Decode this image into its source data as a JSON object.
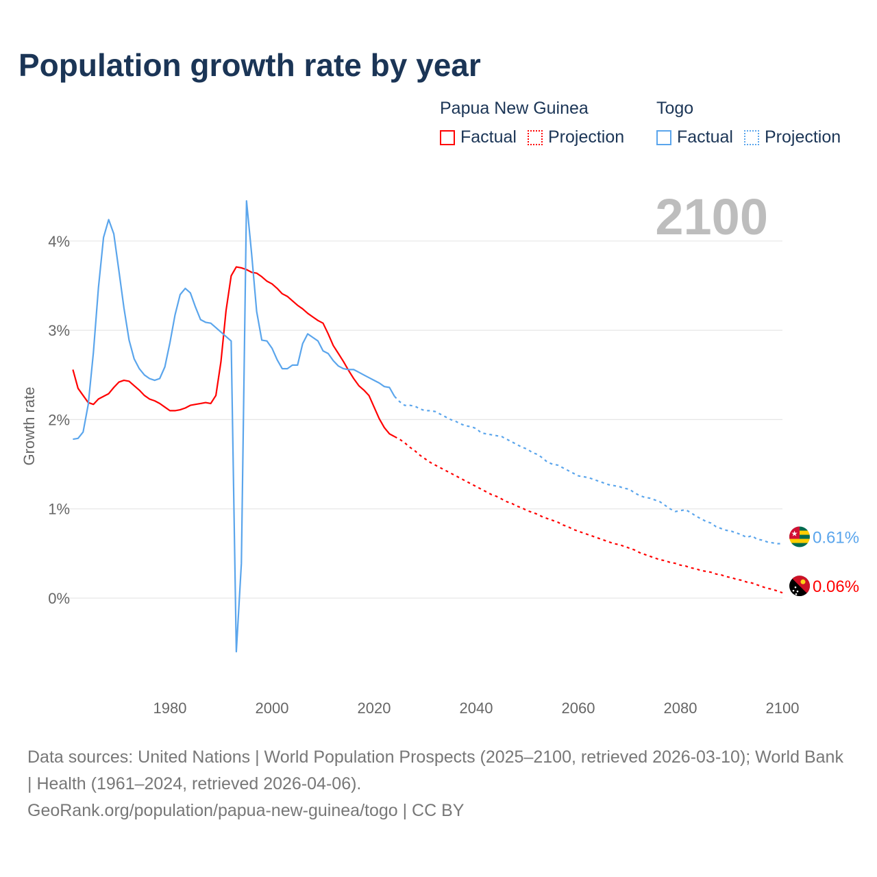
{
  "title": "Population growth rate by year",
  "legend": {
    "groups": [
      {
        "name": "Papua New Guinea",
        "factual": "Factual",
        "projection": "Projection",
        "color": "#ff0000"
      },
      {
        "name": "Togo",
        "factual": "Factual",
        "projection": "Projection",
        "color": "#5aa5ec"
      }
    ]
  },
  "year_label": "2100",
  "footer": {
    "sources": "Data sources: United Nations | World Population Prospects (2025–2100, retrieved 2026-03-10); World Bank | Health (1961–2024, retrieved 2026-04-06).",
    "credit": "GeoRank.org/population/papua-new-guinea/togo | CC BY"
  },
  "chart_data": {
    "type": "line",
    "title": "Population growth rate by year",
    "xlabel": "",
    "ylabel": "Growth rate",
    "xlim": [
      1961,
      2100
    ],
    "ylim": [
      -0.9,
      4.6
    ],
    "x_ticks": [
      "1980",
      "2000",
      "2020",
      "2040",
      "2060",
      "2080",
      "2100"
    ],
    "x_tick_values": [
      1980,
      2000,
      2020,
      2040,
      2060,
      2080,
      2100
    ],
    "y_ticks": [
      "0%",
      "1%",
      "2%",
      "3%",
      "4%"
    ],
    "y_tick_values": [
      0,
      1,
      2,
      3,
      4
    ],
    "grid": true,
    "series": [
      {
        "name": "Papua New Guinea",
        "color": "#ff0000",
        "end_label": "0.06%",
        "factual_start": 1961,
        "factual": [
          2.56,
          2.35,
          2.27,
          2.19,
          2.17,
          2.23,
          2.26,
          2.29,
          2.36,
          2.42,
          2.44,
          2.43,
          2.38,
          2.33,
          2.27,
          2.23,
          2.21,
          2.18,
          2.14,
          2.1,
          2.1,
          2.11,
          2.13,
          2.16,
          2.17,
          2.18,
          2.19,
          2.18,
          2.27,
          2.65,
          3.22,
          3.61,
          3.71,
          3.7,
          3.68,
          3.65,
          3.64,
          3.6,
          3.55,
          3.52,
          3.47,
          3.41,
          3.38,
          3.33,
          3.28,
          3.24,
          3.19,
          3.15,
          3.11,
          3.08,
          2.96,
          2.83,
          2.74,
          2.65,
          2.55,
          2.46,
          2.38,
          2.33,
          2.27,
          2.14,
          2.01,
          1.91,
          1.84,
          1.81
        ],
        "projection_start": 2024,
        "projection": [
          1.81,
          1.78,
          1.74,
          1.69,
          1.65,
          1.6,
          1.56,
          1.52,
          1.49,
          1.46,
          1.43,
          1.4,
          1.37,
          1.34,
          1.31,
          1.28,
          1.25,
          1.22,
          1.19,
          1.16,
          1.14,
          1.11,
          1.08,
          1.06,
          1.03,
          1.01,
          0.98,
          0.96,
          0.94,
          0.91,
          0.89,
          0.87,
          0.85,
          0.82,
          0.8,
          0.77,
          0.75,
          0.73,
          0.71,
          0.69,
          0.67,
          0.65,
          0.63,
          0.61,
          0.6,
          0.58,
          0.56,
          0.54,
          0.51,
          0.49,
          0.47,
          0.45,
          0.43,
          0.42,
          0.4,
          0.39,
          0.37,
          0.36,
          0.34,
          0.33,
          0.31,
          0.3,
          0.29,
          0.27,
          0.26,
          0.24,
          0.23,
          0.21,
          0.2,
          0.18,
          0.17,
          0.15,
          0.13,
          0.11,
          0.1,
          0.08,
          0.06
        ]
      },
      {
        "name": "Togo",
        "color": "#5aa5ec",
        "end_label": "0.61%",
        "factual_start": 1961,
        "factual": [
          1.78,
          1.79,
          1.86,
          2.17,
          2.75,
          3.48,
          4.04,
          4.24,
          4.08,
          3.67,
          3.25,
          2.89,
          2.68,
          2.57,
          2.5,
          2.46,
          2.44,
          2.46,
          2.59,
          2.86,
          3.17,
          3.4,
          3.47,
          3.42,
          3.26,
          3.12,
          3.09,
          3.08,
          3.03,
          2.98,
          2.93,
          2.88,
          -0.6,
          0.39,
          4.45,
          3.86,
          3.21,
          2.89,
          2.88,
          2.8,
          2.67,
          2.57,
          2.57,
          2.61,
          2.61,
          2.85,
          2.96,
          2.92,
          2.88,
          2.77,
          2.74,
          2.66,
          2.6,
          2.57,
          2.56,
          2.56,
          2.53,
          2.5,
          2.47,
          2.44,
          2.41,
          2.37,
          2.36,
          2.26
        ],
        "projection_start": 2024,
        "projection": [
          2.26,
          2.2,
          2.16,
          2.16,
          2.15,
          2.12,
          2.1,
          2.1,
          2.09,
          2.06,
          2.03,
          2.0,
          1.98,
          1.95,
          1.93,
          1.92,
          1.9,
          1.85,
          1.84,
          1.83,
          1.82,
          1.81,
          1.78,
          1.75,
          1.72,
          1.69,
          1.67,
          1.63,
          1.61,
          1.57,
          1.52,
          1.5,
          1.49,
          1.46,
          1.43,
          1.4,
          1.37,
          1.36,
          1.35,
          1.33,
          1.31,
          1.29,
          1.27,
          1.26,
          1.25,
          1.23,
          1.22,
          1.18,
          1.15,
          1.13,
          1.12,
          1.1,
          1.08,
          1.04,
          1.0,
          0.97,
          0.98,
          0.99,
          0.96,
          0.92,
          0.89,
          0.86,
          0.84,
          0.8,
          0.78,
          0.76,
          0.75,
          0.73,
          0.71,
          0.68,
          0.7,
          0.66,
          0.65,
          0.63,
          0.62,
          0.61,
          0.61
        ]
      }
    ]
  }
}
